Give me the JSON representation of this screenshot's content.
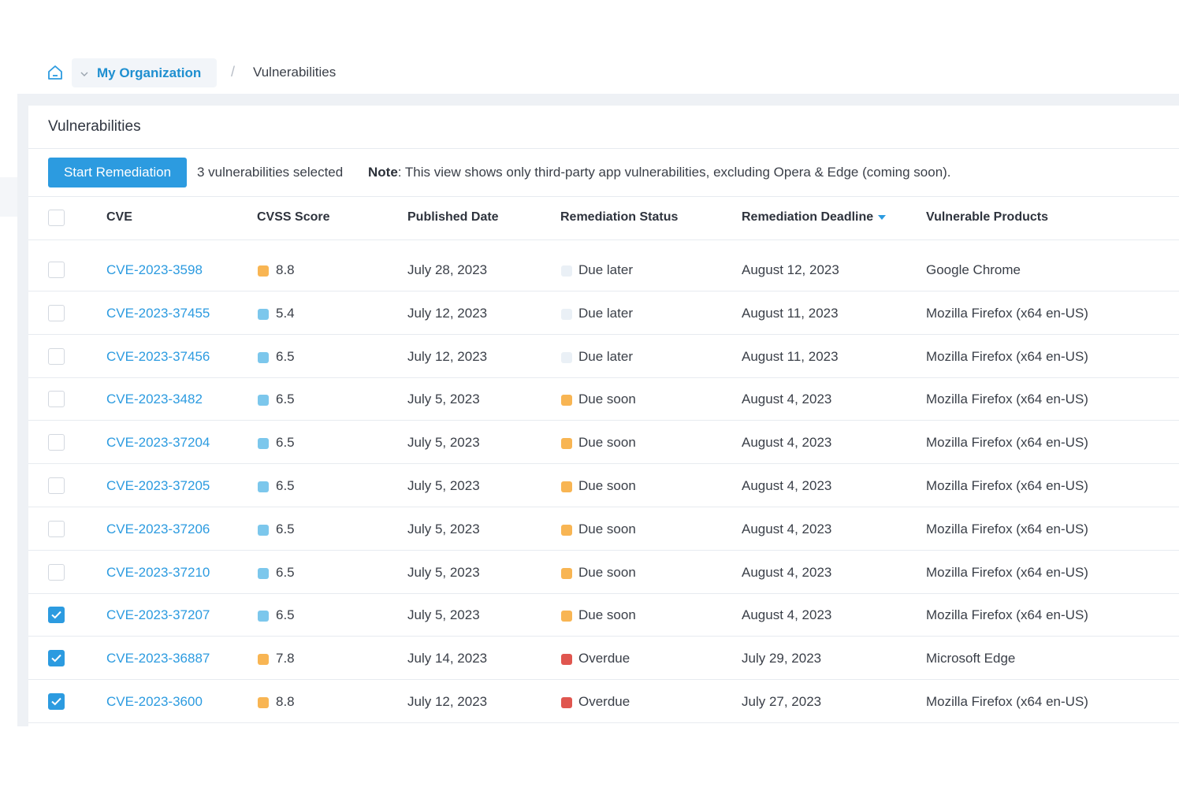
{
  "breadcrumb": {
    "home_icon": "home-icon",
    "organization": "My Organization",
    "separator": "/",
    "current": "Vulnerabilities"
  },
  "panel": {
    "title": "Vulnerabilities"
  },
  "toolbar": {
    "start_remediation_label": "Start Remediation",
    "selected_text": "3 vulnerabilities selected",
    "note_label": "Note",
    "note_text": ": This view shows only third-party app vulnerabilities, excluding Opera & Edge (coming soon)."
  },
  "table": {
    "columns": [
      "CVE",
      "CVSS Score",
      "Published Date",
      "Remediation Status",
      "Remediation Deadline",
      "Vulnerable Products"
    ],
    "sorted_column": "Remediation Deadline",
    "colors": {
      "score_high": "#f8b553",
      "score_medium": "#7cc7ec",
      "status_later": "#eaf0f6",
      "status_soon": "#f8b553",
      "status_overdue": "#e0564f"
    },
    "rows": [
      {
        "checked": false,
        "cve": "CVE-2023-3598",
        "score": "8.8",
        "score_level": "score_high",
        "published": "July 28, 2023",
        "status": "Due later",
        "status_level": "status_later",
        "deadline": "August 12, 2023",
        "product": "Google Chrome"
      },
      {
        "checked": false,
        "cve": "CVE-2023-37455",
        "score": "5.4",
        "score_level": "score_medium",
        "published": "July 12, 2023",
        "status": "Due later",
        "status_level": "status_later",
        "deadline": "August 11, 2023",
        "product": "Mozilla Firefox (x64 en-US)"
      },
      {
        "checked": false,
        "cve": "CVE-2023-37456",
        "score": "6.5",
        "score_level": "score_medium",
        "published": "July 12, 2023",
        "status": "Due later",
        "status_level": "status_later",
        "deadline": "August 11, 2023",
        "product": "Mozilla Firefox (x64 en-US)"
      },
      {
        "checked": false,
        "cve": "CVE-2023-3482",
        "score": "6.5",
        "score_level": "score_medium",
        "published": "July 5, 2023",
        "status": "Due soon",
        "status_level": "status_soon",
        "deadline": "August 4, 2023",
        "product": "Mozilla Firefox (x64 en-US)"
      },
      {
        "checked": false,
        "cve": "CVE-2023-37204",
        "score": "6.5",
        "score_level": "score_medium",
        "published": "July 5, 2023",
        "status": "Due soon",
        "status_level": "status_soon",
        "deadline": "August 4, 2023",
        "product": "Mozilla Firefox (x64 en-US)"
      },
      {
        "checked": false,
        "cve": "CVE-2023-37205",
        "score": "6.5",
        "score_level": "score_medium",
        "published": "July 5, 2023",
        "status": "Due soon",
        "status_level": "status_soon",
        "deadline": "August 4, 2023",
        "product": "Mozilla Firefox (x64 en-US)"
      },
      {
        "checked": false,
        "cve": "CVE-2023-37206",
        "score": "6.5",
        "score_level": "score_medium",
        "published": "July 5, 2023",
        "status": "Due soon",
        "status_level": "status_soon",
        "deadline": "August 4, 2023",
        "product": "Mozilla Firefox (x64 en-US)"
      },
      {
        "checked": false,
        "cve": "CVE-2023-37210",
        "score": "6.5",
        "score_level": "score_medium",
        "published": "July 5, 2023",
        "status": "Due soon",
        "status_level": "status_soon",
        "deadline": "August 4, 2023",
        "product": "Mozilla Firefox (x64 en-US)"
      },
      {
        "checked": true,
        "cve": "CVE-2023-37207",
        "score": "6.5",
        "score_level": "score_medium",
        "published": "July 5, 2023",
        "status": "Due soon",
        "status_level": "status_soon",
        "deadline": "August 4, 2023",
        "product": "Mozilla Firefox (x64 en-US)"
      },
      {
        "checked": true,
        "cve": "CVE-2023-36887",
        "score": "7.8",
        "score_level": "score_high",
        "published": "July 14, 2023",
        "status": "Overdue",
        "status_level": "status_overdue",
        "deadline": "July 29, 2023",
        "product": "Microsoft Edge"
      },
      {
        "checked": true,
        "cve": "CVE-2023-3600",
        "score": "8.8",
        "score_level": "score_high",
        "published": "July 12, 2023",
        "status": "Overdue",
        "status_level": "status_overdue",
        "deadline": "July 27, 2023",
        "product": "Mozilla Firefox (x64 en-US)"
      }
    ]
  }
}
